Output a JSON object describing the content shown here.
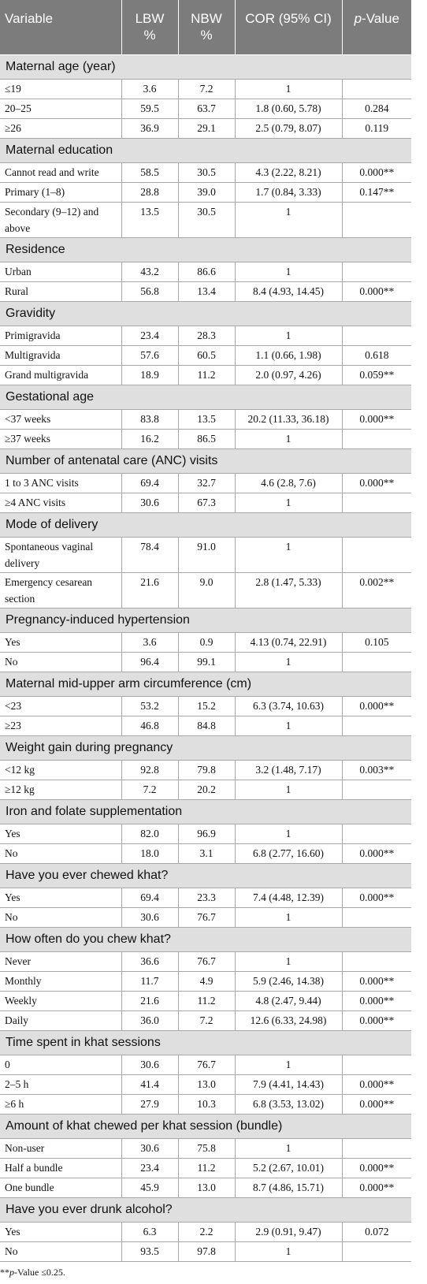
{
  "headers": {
    "variable": "Variable",
    "lbw": "LBW",
    "lbw_unit": "%",
    "nbw": "NBW",
    "nbw_unit": "%",
    "cor": "COR (95% CI)",
    "pvalue_italic": "p",
    "pvalue_rest": "-Value"
  },
  "sections": [
    {
      "title": "Maternal age (year)",
      "rows": [
        {
          "label": "≤19",
          "lbw": "3.6",
          "nbw": "7.2",
          "cor": "1",
          "p": ""
        },
        {
          "label": "20–25",
          "lbw": "59.5",
          "nbw": "63.7",
          "cor": "1.8 (0.60, 5.78)",
          "p": "0.284"
        },
        {
          "label": "≥26",
          "lbw": "36.9",
          "nbw": "29.1",
          "cor": "2.5 (0.79, 8.07)",
          "p": "0.119"
        }
      ]
    },
    {
      "title": "Maternal education",
      "rows": [
        {
          "label": "Cannot read and write",
          "lbw": "58.5",
          "nbw": "30.5",
          "cor": "4.3 (2.22, 8.21)",
          "p": "0.000**"
        },
        {
          "label": "Primary (1–8)",
          "lbw": "28.8",
          "nbw": "39.0",
          "cor": "1.7 (0.84, 3.33)",
          "p": "0.147**"
        },
        {
          "label": "Secondary (9–12) and above",
          "lbw": "13.5",
          "nbw": "30.5",
          "cor": "1",
          "p": ""
        }
      ]
    },
    {
      "title": "Residence",
      "rows": [
        {
          "label": "Urban",
          "lbw": "43.2",
          "nbw": "86.6",
          "cor": "1",
          "p": ""
        },
        {
          "label": "Rural",
          "lbw": "56.8",
          "nbw": "13.4",
          "cor": "8.4 (4.93, 14.45)",
          "p": "0.000**"
        }
      ]
    },
    {
      "title": "Gravidity",
      "rows": [
        {
          "label": "Primigravida",
          "lbw": "23.4",
          "nbw": "28.3",
          "cor": "1",
          "p": ""
        },
        {
          "label": "Multigravida",
          "lbw": "57.6",
          "nbw": "60.5",
          "cor": "1.1 (0.66, 1.98)",
          "p": "0.618"
        },
        {
          "label": "Grand multigravida",
          "lbw": "18.9",
          "nbw": "11.2",
          "cor": "2.0 (0.97, 4.26)",
          "p": "0.059**"
        }
      ]
    },
    {
      "title": "Gestational age",
      "rows": [
        {
          "label": "<37 weeks",
          "lbw": "83.8",
          "nbw": "13.5",
          "cor": "20.2 (11.33, 36.18)",
          "p": "0.000**"
        },
        {
          "label": "≥37 weeks",
          "lbw": "16.2",
          "nbw": "86.5",
          "cor": "1",
          "p": ""
        }
      ]
    },
    {
      "title": "Number of antenatal care (ANC) visits",
      "rows": [
        {
          "label": "1 to 3 ANC visits",
          "lbw": "69.4",
          "nbw": "32.7",
          "cor": "4.6 (2.8, 7.6)",
          "p": "0.000**"
        },
        {
          "label": "≥4 ANC visits",
          "lbw": "30.6",
          "nbw": "67.3",
          "cor": "1",
          "p": ""
        }
      ]
    },
    {
      "title": "Mode of delivery",
      "rows": [
        {
          "label": "Spontaneous vaginal delivery",
          "lbw": "78.4",
          "nbw": "91.0",
          "cor": "1",
          "p": ""
        },
        {
          "label": "Emergency cesarean section",
          "lbw": "21.6",
          "nbw": "9.0",
          "cor": "2.8 (1.47, 5.33)",
          "p": "0.002**"
        }
      ]
    },
    {
      "title": "Pregnancy-induced hypertension",
      "rows": [
        {
          "label": "Yes",
          "lbw": "3.6",
          "nbw": "0.9",
          "cor": "4.13 (0.74, 22.91)",
          "p": "0.105"
        },
        {
          "label": "No",
          "lbw": "96.4",
          "nbw": "99.1",
          "cor": "1",
          "p": ""
        }
      ]
    },
    {
      "title": "Maternal mid-upper arm circumference (cm)",
      "rows": [
        {
          "label": "<23",
          "lbw": "53.2",
          "nbw": "15.2",
          "cor": "6.3 (3.74, 10.63)",
          "p": "0.000**"
        },
        {
          "label": "≥23",
          "lbw": "46.8",
          "nbw": "84.8",
          "cor": "1",
          "p": ""
        }
      ]
    },
    {
      "title": "Weight gain during pregnancy",
      "rows": [
        {
          "label": "<12 kg",
          "lbw": "92.8",
          "nbw": "79.8",
          "cor": "3.2 (1.48, 7.17)",
          "p": "0.003**"
        },
        {
          "label": "≥12 kg",
          "lbw": "7.2",
          "nbw": "20.2",
          "cor": "1",
          "p": ""
        }
      ]
    },
    {
      "title": "Iron and folate supplementation",
      "rows": [
        {
          "label": "Yes",
          "lbw": "82.0",
          "nbw": "96.9",
          "cor": "1",
          "p": ""
        },
        {
          "label": "No",
          "lbw": "18.0",
          "nbw": "3.1",
          "cor": "6.8 (2.77, 16.60)",
          "p": "0.000**"
        }
      ]
    },
    {
      "title": "Have you ever chewed khat?",
      "rows": [
        {
          "label": "Yes",
          "lbw": "69.4",
          "nbw": "23.3",
          "cor": "7.4 (4.48, 12.39)",
          "p": "0.000**"
        },
        {
          "label": "No",
          "lbw": "30.6",
          "nbw": "76.7",
          "cor": "1",
          "p": ""
        }
      ]
    },
    {
      "title": "How often do you chew khat?",
      "rows": [
        {
          "label": "Never",
          "lbw": "36.6",
          "nbw": "76.7",
          "cor": "1",
          "p": ""
        },
        {
          "label": "Monthly",
          "lbw": "11.7",
          "nbw": "4.9",
          "cor": "5.9 (2.46, 14.38)",
          "p": "0.000**"
        },
        {
          "label": "Weekly",
          "lbw": "21.6",
          "nbw": "11.2",
          "cor": "4.8 (2.47, 9.44)",
          "p": "0.000**"
        },
        {
          "label": "Daily",
          "lbw": "36.0",
          "nbw": "7.2",
          "cor": "12.6 (6.33, 24.98)",
          "p": "0.000**"
        }
      ]
    },
    {
      "title": "Time spent in khat sessions",
      "rows": [
        {
          "label": "0",
          "lbw": "30.6",
          "nbw": "76.7",
          "cor": "1",
          "p": ""
        },
        {
          "label": "2–5 h",
          "lbw": "41.4",
          "nbw": "13.0",
          "cor": "7.9 (4.41, 14.43)",
          "p": "0.000**"
        },
        {
          "label": "≥6 h",
          "lbw": "27.9",
          "nbw": "10.3",
          "cor": "6.8 (3.53, 13.02)",
          "p": "0.000**"
        }
      ]
    },
    {
      "title": "Amount of khat chewed per khat session (bundle)",
      "rows": [
        {
          "label": "Non-user",
          "lbw": "30.6",
          "nbw": "75.8",
          "cor": "1",
          "p": ""
        },
        {
          "label": "Half a bundle",
          "lbw": "23.4",
          "nbw": "11.2",
          "cor": "5.2 (2.67, 10.01)",
          "p": "0.000**"
        },
        {
          "label": "One bundle",
          "lbw": "45.9",
          "nbw": "13.0",
          "cor": "8.7 (4.86, 15.71)",
          "p": "0.000**"
        }
      ]
    },
    {
      "title": "Have you ever drunk alcohol?",
      "rows": [
        {
          "label": "Yes",
          "lbw": "6.3",
          "nbw": "2.2",
          "cor": "2.9 (0.91, 9.47)",
          "p": "0.072"
        },
        {
          "label": "No",
          "lbw": "93.5",
          "nbw": "97.8",
          "cor": "1",
          "p": ""
        }
      ]
    }
  ],
  "footnote": {
    "prefix": "**",
    "italic": "p",
    "rest": "-Value ≤0.25."
  }
}
